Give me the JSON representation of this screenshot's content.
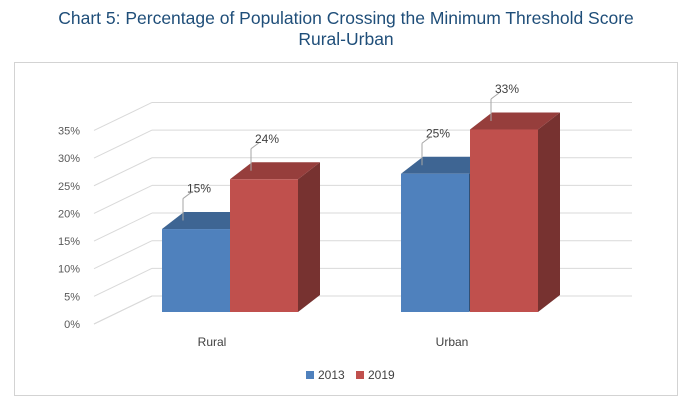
{
  "chart_data": {
    "type": "bar",
    "title": "Chart 5: Percentage of Population Crossing the Minimum Threshold Score",
    "subtitle": "Rural-Urban",
    "categories": [
      "Rural",
      "Urban"
    ],
    "series": [
      {
        "name": "2013",
        "values": [
          15,
          25
        ],
        "labels": [
          "15%",
          "25%"
        ],
        "color": "#4f81bd"
      },
      {
        "name": "2019",
        "values": [
          24,
          33
        ],
        "labels": [
          "24%",
          "33%"
        ],
        "color": "#c0504d"
      }
    ],
    "y_ticks": [
      "0%",
      "5%",
      "10%",
      "15%",
      "20%",
      "25%",
      "30%",
      "35%"
    ],
    "ylim": [
      0,
      35
    ],
    "grid": true,
    "legend": "bottom"
  }
}
